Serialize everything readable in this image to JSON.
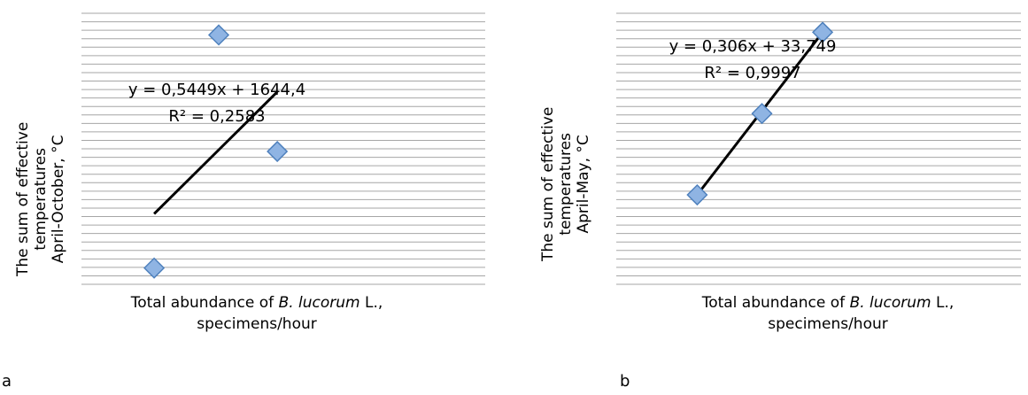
{
  "chart_data": [
    {
      "type": "scatter",
      "panel_label": "a",
      "ylabel_lines": [
        "The sum of effective",
        "temperatures",
        "April-October, °C"
      ],
      "xlabel_prefix": "Total abundance of ",
      "xlabel_italic": "B. lucorum",
      "xlabel_suffix": " L.,",
      "xlabel_line2": "specimens/hour",
      "grid": true,
      "x": [
        0.18,
        0.34,
        0.485
      ],
      "y": [
        0.06,
        0.92,
        0.49
      ],
      "trendline": {
        "x": [
          0.18,
          0.485
        ],
        "y": [
          0.26,
          0.71
        ]
      },
      "equation": "y = 0,5449x + 1644,4",
      "r_squared": "R² = 0,2583",
      "series_color": "#8fb4e3",
      "series_edge": "#4f81bd",
      "trend_color": "#000000"
    },
    {
      "type": "scatter",
      "panel_label": "b",
      "ylabel_lines": [
        "The sum of effective",
        "temperatures",
        "April-May, °C"
      ],
      "xlabel_prefix": "Total abundance of  ",
      "xlabel_italic": "B. lucorum",
      "xlabel_suffix": " L.,",
      "xlabel_line2": "specimens/hour",
      "grid": true,
      "x": [
        0.2,
        0.36,
        0.51
      ],
      "y": [
        0.33,
        0.63,
        0.93
      ],
      "trendline": {
        "x": [
          0.2,
          0.51
        ],
        "y": [
          0.33,
          0.93
        ]
      },
      "equation": "y = 0,306x + 33,749",
      "r_squared": "R² = 0,9997",
      "series_color": "#8fb4e3",
      "series_edge": "#4f81bd",
      "trend_color": "#000000"
    }
  ]
}
